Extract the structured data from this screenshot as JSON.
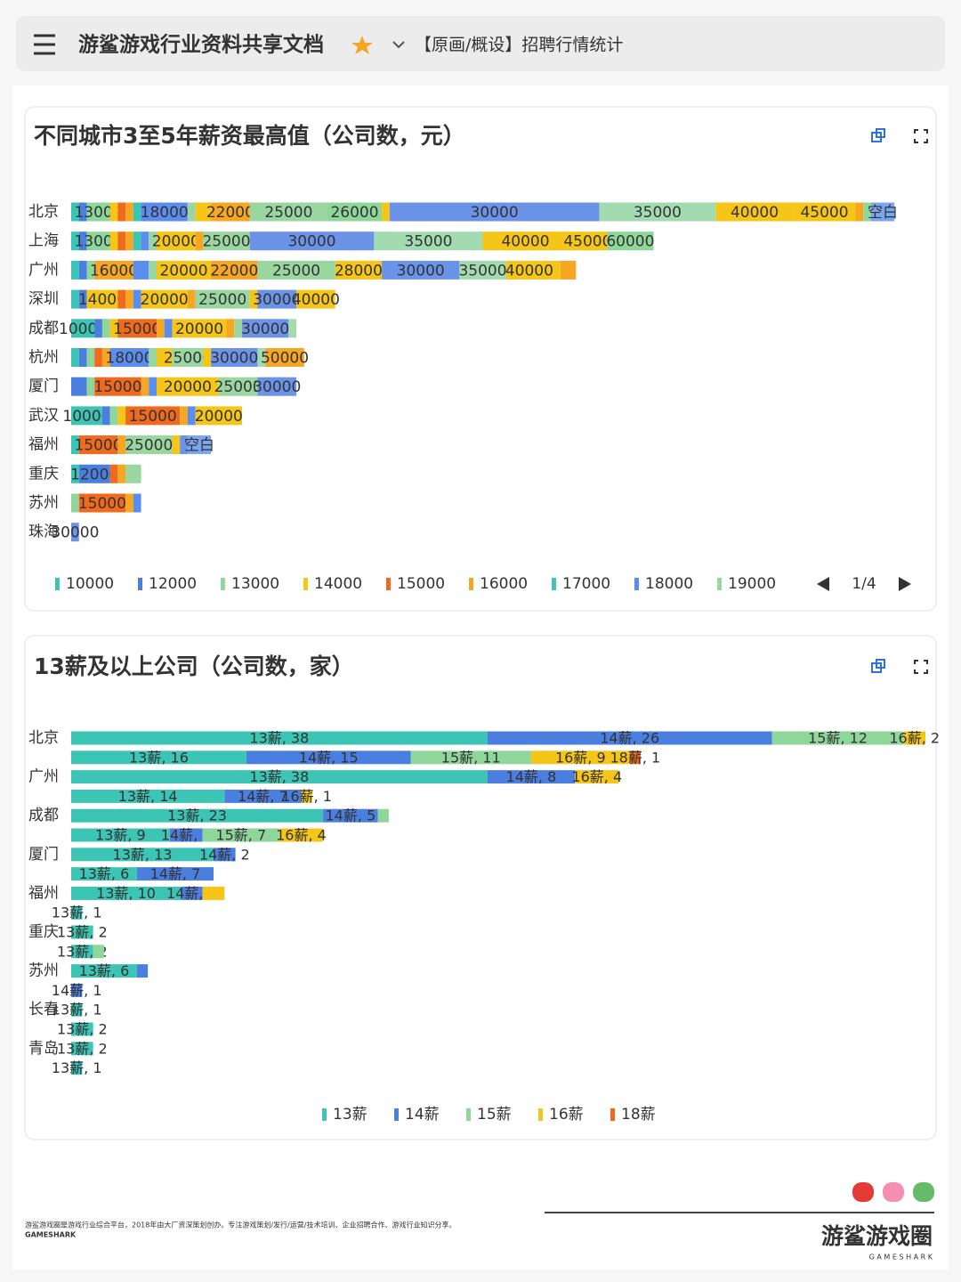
{
  "header": {
    "title": "游鲨游戏行业资料共享文档",
    "doc_title": "【原画/概设】招聘行情统计"
  },
  "chart_data": [
    {
      "type": "bar",
      "orientation": "horizontal",
      "stacked": true,
      "title": "不同城市3至5年薪资最高值（公司数，元）",
      "categories": [
        "北京",
        "上海",
        "广州",
        "深圳",
        "成都",
        "杭州",
        "厦门",
        "武汉",
        "福州",
        "重庆",
        "苏州",
        "珠海"
      ],
      "xlim": [
        0,
        110
      ],
      "legend_page": "1/4",
      "series": [
        {
          "name": "10000",
          "color": "#3cc4b4",
          "values": [
            1,
            1,
            1,
            1,
            3,
            1,
            null,
            4,
            1,
            1,
            null,
            null
          ]
        },
        {
          "name": "12000",
          "color": "#4a7fe0",
          "values": [
            1,
            1,
            1,
            1,
            1,
            1,
            2,
            1,
            null,
            4,
            null,
            null
          ]
        },
        {
          "name": "13000",
          "color": "#8fd69a",
          "values": [
            3,
            3,
            1,
            null,
            1,
            1,
            1,
            1,
            null,
            null,
            1,
            null
          ]
        },
        {
          "name": "14000",
          "color": "#f5c518",
          "values": [
            1,
            1,
            null,
            4,
            1,
            null,
            null,
            1,
            null,
            null,
            null,
            null
          ]
        },
        {
          "name": "15000",
          "color": "#f06a1e",
          "values": [
            1,
            1,
            null,
            1,
            5,
            1,
            6,
            7,
            5,
            1,
            6,
            null
          ]
        },
        {
          "name": "16000",
          "color": "#f5a623",
          "values": [
            1,
            1,
            5,
            1,
            1,
            1,
            1,
            1,
            1,
            1,
            1,
            null
          ]
        },
        {
          "name": "17000",
          "color": "#3cc4b4",
          "values": [
            1,
            1,
            null,
            null,
            null,
            null,
            null,
            null,
            null,
            null,
            null,
            null
          ]
        },
        {
          "name": "18000",
          "color": "#5b8def",
          "values": [
            6,
            1,
            2,
            1,
            1,
            5,
            1,
            1,
            null,
            null,
            1,
            null
          ]
        },
        {
          "name": "19000",
          "color": "#9ad6a0",
          "values": [
            1,
            1,
            1,
            null,
            null,
            1,
            null,
            null,
            null,
            2,
            null,
            null
          ]
        },
        {
          "name": "20000",
          "color": "#f5c518",
          "values": [
            2,
            5,
            7,
            6,
            7,
            2,
            8,
            6,
            null,
            null,
            null,
            null
          ]
        },
        {
          "name": "22000",
          "color": "#f5a623",
          "values": [
            5,
            1,
            6,
            1,
            1,
            null,
            null,
            null,
            null,
            null,
            null,
            null
          ]
        },
        {
          "name": "25000",
          "color": "#9ad6a0",
          "values": [
            10,
            6,
            10,
            7,
            1,
            4,
            5,
            null,
            6,
            null,
            null,
            null
          ]
        },
        {
          "name": "26000",
          "color": "#8fd69a",
          "values": [
            7,
            null,
            null,
            null,
            null,
            null,
            null,
            null,
            null,
            null,
            null,
            null
          ]
        },
        {
          "name": "28000",
          "color": "#f5c518",
          "values": [
            1,
            null,
            6,
            1,
            null,
            1,
            null,
            null,
            1,
            null,
            null,
            null
          ]
        },
        {
          "name": "30000",
          "color": "#6b93e8",
          "values": [
            27,
            16,
            10,
            5,
            6,
            6,
            5,
            null,
            1,
            null,
            null,
            1
          ]
        },
        {
          "name": "35000",
          "color": "#a3dbb0",
          "values": [
            15,
            14,
            6,
            null,
            1,
            1,
            null,
            null,
            null,
            null,
            null,
            null
          ]
        },
        {
          "name": "40000",
          "color": "#f5c518",
          "values": [
            10,
            11,
            6,
            5,
            null,
            null,
            null,
            null,
            null,
            null,
            null,
            null
          ]
        },
        {
          "name": "45000",
          "color": "#f5c518",
          "values": [
            8,
            5,
            1,
            null,
            null,
            null,
            null,
            null,
            null,
            null,
            null,
            null
          ]
        },
        {
          "name": "50000",
          "color": "#f5a623",
          "values": [
            1,
            null,
            2,
            null,
            null,
            5,
            null,
            null,
            null,
            null,
            null,
            null
          ]
        },
        {
          "name": "60000",
          "color": "#8fd69a",
          "values": [
            1,
            6,
            null,
            null,
            null,
            null,
            null,
            null,
            null,
            null,
            null,
            null
          ]
        },
        {
          "name": "空白",
          "color": "#7aa6f0",
          "values": [
            3,
            null,
            null,
            null,
            null,
            null,
            null,
            null,
            3,
            null,
            null,
            null
          ]
        }
      ]
    },
    {
      "type": "bar",
      "orientation": "horizontal",
      "stacked": true,
      "title": "13薪及以上公司（公司数，家）",
      "categories": [
        "北京",
        null,
        "广州",
        null,
        "成都",
        null,
        "厦门",
        null,
        "福州",
        null,
        "重庆",
        null,
        "苏州",
        null,
        "长春",
        null,
        "青岛",
        null
      ],
      "xlim": [
        0,
        78
      ],
      "series": [
        {
          "name": "13薪",
          "color": "#3cc4b4",
          "values": [
            38,
            16,
            38,
            14,
            23,
            9,
            13,
            6,
            10,
            1,
            2,
            2,
            6,
            null,
            1,
            2,
            2,
            1
          ],
          "value_labels": [
            "13薪, 38",
            "13薪, 16",
            "13薪, 38",
            "13薪, 14",
            "13薪, 23",
            "13薪, 9",
            "13薪, 13",
            "13薪, 6",
            "13薪, 10",
            "13薪, 1",
            "13薪, 2",
            "13薪, 2",
            "13薪, 6",
            null,
            "13薪, 1",
            "13薪, 2",
            "13薪, 2",
            "13薪, 1"
          ]
        },
        {
          "name": "14薪",
          "color": "#4a7fe0",
          "values": [
            26,
            15,
            8,
            7,
            5,
            3,
            2,
            7,
            2,
            null,
            null,
            null,
            1,
            1,
            null,
            null,
            null,
            null
          ],
          "value_labels": [
            "14薪, 26",
            "14薪, 15",
            "14薪, 8",
            "14薪, 7",
            "14薪, 5",
            "14薪, 3",
            "14薪, 2",
            "14薪, 7",
            "14薪, 2",
            null,
            null,
            null,
            null,
            "14薪, 1",
            null,
            null,
            null,
            null
          ]
        },
        {
          "name": "15薪",
          "color": "#8fd69a",
          "values": [
            12,
            11,
            null,
            null,
            1,
            7,
            null,
            null,
            null,
            null,
            null,
            1,
            null,
            null,
            null,
            null,
            null,
            null
          ],
          "value_labels": [
            "15薪, 12",
            "15薪, 11",
            null,
            null,
            null,
            "15薪, 7",
            null,
            null,
            null,
            null,
            null,
            null,
            null,
            null,
            null,
            null,
            null,
            null
          ]
        },
        {
          "name": "16薪",
          "color": "#f5c518",
          "values": [
            2,
            9,
            4,
            1,
            null,
            4,
            null,
            null,
            2,
            null,
            null,
            null,
            null,
            null,
            null,
            null,
            null,
            null
          ],
          "value_labels": [
            "16薪, 2",
            "16薪, 9",
            "16薪, 4",
            "16薪, 1",
            null,
            "16薪, 4",
            null,
            null,
            null,
            null,
            null,
            null,
            null,
            null,
            null,
            null,
            null,
            null
          ]
        },
        {
          "name": "18薪",
          "color": "#f06a1e",
          "values": [
            null,
            1,
            null,
            null,
            null,
            null,
            null,
            null,
            null,
            null,
            null,
            null,
            null,
            null,
            null,
            null,
            null,
            null
          ],
          "value_labels": [
            null,
            "18薪, 1",
            null,
            null,
            null,
            null,
            null,
            null,
            null,
            null,
            null,
            null,
            null,
            null,
            null,
            null,
            null,
            null
          ]
        }
      ]
    }
  ],
  "footer": {
    "description": "游鲨游戏圈是游戏行业综合平台，2018年由大厂资深策划创办。专注游戏策划/发行/运营/技术培训、企业招聘合作、游戏行业知识分享。",
    "brand_small": "GAMESHARK",
    "logo": "游鲨游戏圈",
    "logo_sub": "G A M E S H A R K"
  }
}
